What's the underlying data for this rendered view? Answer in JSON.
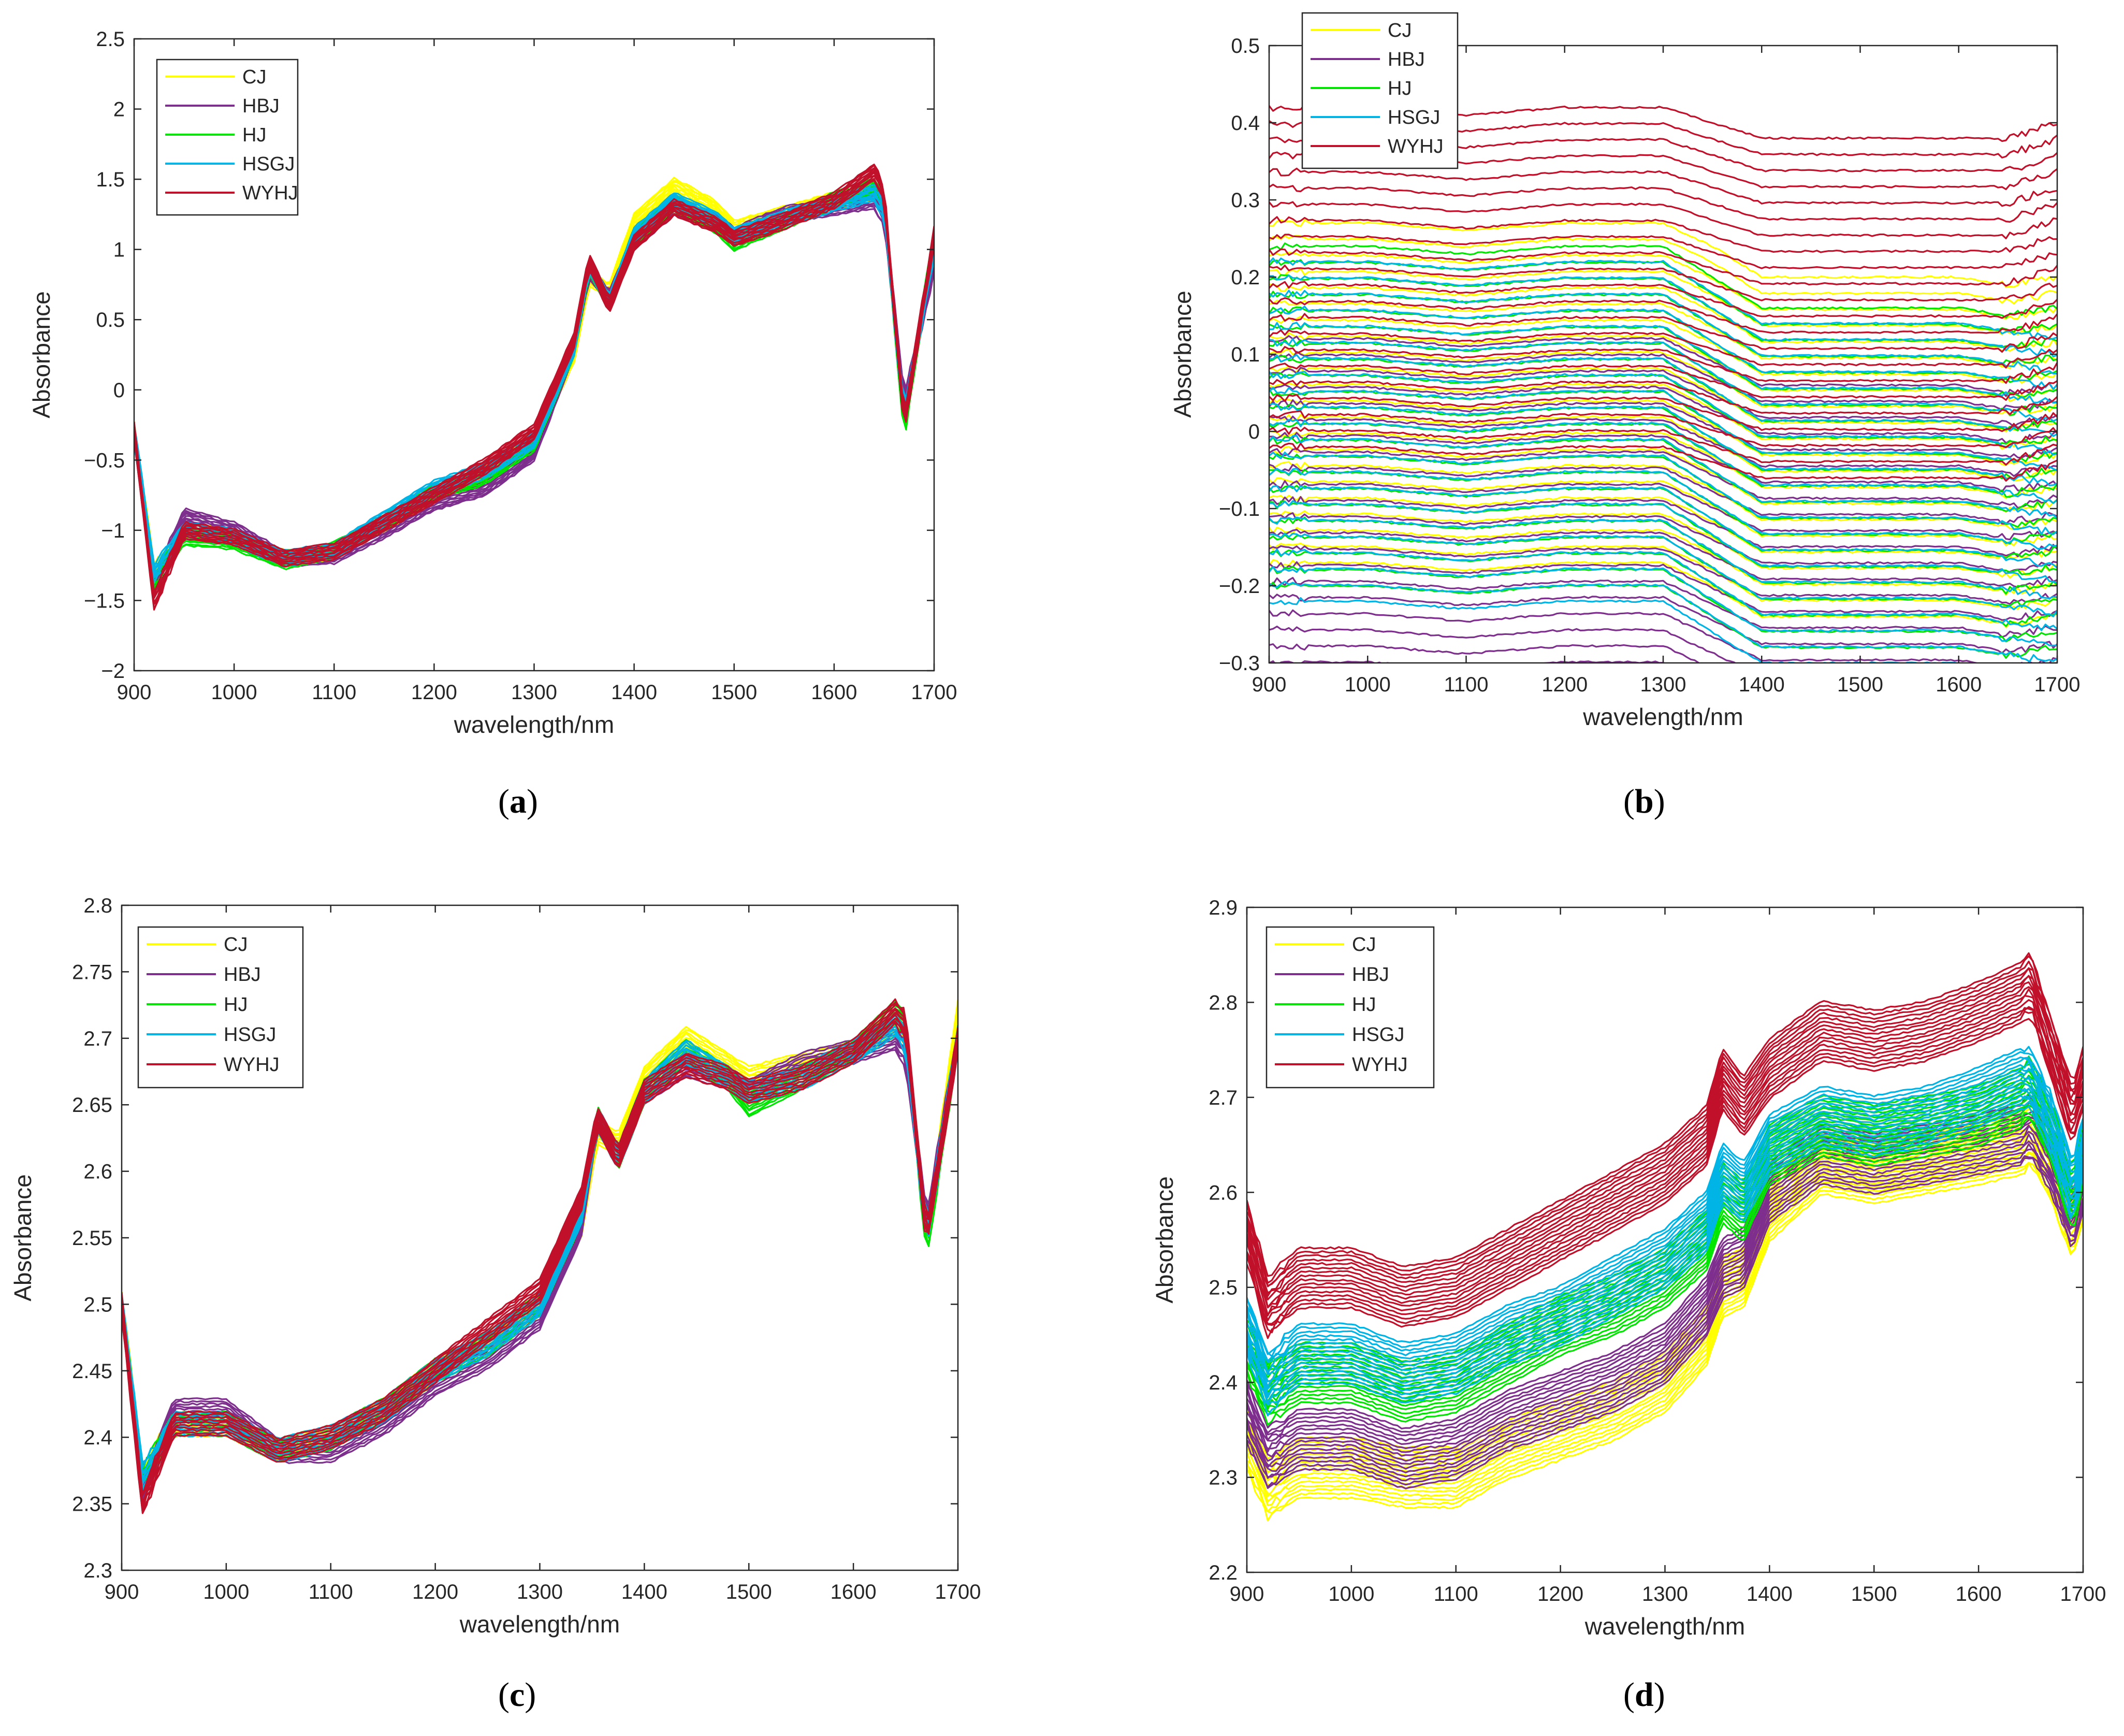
{
  "figure": {
    "captions": [
      {
        "open": "(",
        "letter": "a",
        "close": ")"
      },
      {
        "open": "(",
        "letter": "b",
        "close": ")"
      },
      {
        "open": "(",
        "letter": "c",
        "close": ")"
      },
      {
        "open": "(",
        "letter": "d",
        "close": ")"
      }
    ]
  },
  "colors": {
    "CJ": "#ffff00",
    "HBJ": "#7e2f8e",
    "HJ": "#00e600",
    "HSGJ": "#00b4e6",
    "WYHJ": "#c0102a"
  },
  "chart_data": [
    {
      "id": "a",
      "type": "line",
      "title": "",
      "xlabel": "wavelength/nm",
      "ylabel": "Absorbance",
      "xlim": [
        900,
        1700
      ],
      "ylim": [
        -2,
        2.5
      ],
      "xticks": [
        900,
        1000,
        1100,
        1200,
        1300,
        1400,
        1500,
        1600,
        1700
      ],
      "yticks": [
        -2,
        -1.5,
        -1,
        -0.5,
        0,
        0.5,
        1,
        1.5,
        2,
        2.5
      ],
      "ytick_labels": [
        "−2",
        "−1.5",
        "−1",
        "−0.5",
        "0",
        "0.5",
        "1",
        "1.5",
        "2",
        "2.5"
      ],
      "legend": [
        "CJ",
        "HBJ",
        "HJ",
        "HSGJ",
        "WYHJ"
      ],
      "legend_position": "top-left",
      "grid": false,
      "x": [
        900,
        920,
        950,
        1000,
        1050,
        1100,
        1150,
        1200,
        1250,
        1300,
        1340,
        1355,
        1375,
        1400,
        1440,
        1480,
        1500,
        1550,
        1600,
        1640,
        1650,
        1670,
        1700
      ],
      "series": [
        {
          "name": "CJ",
          "values": [
            -0.3,
            -1.3,
            -1.0,
            -1.05,
            -1.2,
            -1.15,
            -0.95,
            -0.75,
            -0.6,
            -0.35,
            0.25,
            0.8,
            0.7,
            1.2,
            1.45,
            1.3,
            1.15,
            1.25,
            1.35,
            1.4,
            1.3,
            -0.2,
            1.0
          ]
        },
        {
          "name": "HBJ",
          "values": [
            -0.3,
            -1.4,
            -0.9,
            -1.0,
            -1.2,
            -1.18,
            -1.0,
            -0.8,
            -0.7,
            -0.45,
            0.3,
            0.85,
            0.65,
            1.05,
            1.3,
            1.2,
            1.1,
            1.25,
            1.3,
            1.35,
            1.25,
            -0.1,
            0.9
          ]
        },
        {
          "name": "HJ",
          "values": [
            -0.3,
            -1.35,
            -1.05,
            -1.08,
            -1.22,
            -1.14,
            -0.95,
            -0.72,
            -0.62,
            -0.38,
            0.3,
            0.88,
            0.62,
            1.08,
            1.33,
            1.18,
            1.05,
            1.2,
            1.35,
            1.45,
            1.35,
            -0.3,
            1.1
          ]
        },
        {
          "name": "HSGJ",
          "values": [
            -0.3,
            -1.3,
            -1.0,
            -1.05,
            -1.2,
            -1.15,
            -0.92,
            -0.7,
            -0.58,
            -0.36,
            0.3,
            0.9,
            0.62,
            1.1,
            1.35,
            1.22,
            1.1,
            1.22,
            1.33,
            1.4,
            1.3,
            -0.2,
            1.0
          ]
        },
        {
          "name": "WYHJ",
          "values": [
            -0.3,
            -1.5,
            -1.0,
            -1.05,
            -1.2,
            -1.15,
            -0.95,
            -0.75,
            -0.55,
            -0.3,
            0.35,
            0.92,
            0.6,
            1.05,
            1.3,
            1.18,
            1.08,
            1.2,
            1.35,
            1.55,
            1.4,
            -0.25,
            1.1
          ]
        }
      ]
    },
    {
      "id": "b",
      "type": "line",
      "title": "",
      "xlabel": "wavelength/nm",
      "ylabel": "Absorbance",
      "xlim": [
        900,
        1700
      ],
      "ylim": [
        -0.3,
        0.5
      ],
      "xticks": [
        900,
        1000,
        1100,
        1200,
        1300,
        1400,
        1500,
        1600,
        1700
      ],
      "yticks": [
        -0.3,
        -0.2,
        -0.1,
        0,
        0.1,
        0.2,
        0.3,
        0.4,
        0.5
      ],
      "ytick_labels": [
        "−0.3",
        "−0.2",
        "−0.1",
        "0",
        "0.1",
        "0.2",
        "0.3",
        "0.4",
        "0.5"
      ],
      "legend": [
        "CJ",
        "HBJ",
        "HJ",
        "HSGJ",
        "WYHJ"
      ],
      "legend_position": "top-left",
      "grid": false,
      "x": [
        900,
        1000,
        1100,
        1200,
        1300,
        1350,
        1400,
        1500,
        1600,
        1650,
        1700
      ],
      "series": [
        {
          "name": "CJ",
          "values": [
            0.05,
            0.05,
            0.04,
            0.05,
            0.05,
            0.02,
            -0.02,
            -0.02,
            -0.02,
            -0.03,
            -0.02
          ]
        },
        {
          "name": "HBJ",
          "values": [
            -0.1,
            -0.1,
            -0.11,
            -0.1,
            -0.1,
            -0.13,
            -0.16,
            -0.16,
            -0.16,
            -0.17,
            -0.16
          ]
        },
        {
          "name": "HJ",
          "values": [
            0.02,
            0.02,
            0.01,
            0.02,
            0.02,
            -0.02,
            -0.06,
            -0.06,
            -0.06,
            -0.07,
            -0.06
          ]
        },
        {
          "name": "HSGJ",
          "values": [
            0.0,
            0.0,
            -0.01,
            0.0,
            0.0,
            -0.04,
            -0.08,
            -0.08,
            -0.08,
            -0.09,
            -0.1
          ]
        },
        {
          "name": "WYHJ",
          "values": [
            0.2,
            0.2,
            0.19,
            0.2,
            0.2,
            0.18,
            0.16,
            0.16,
            0.16,
            0.16,
            0.18
          ]
        }
      ]
    },
    {
      "id": "c",
      "type": "line",
      "title": "",
      "xlabel": "wavelength/nm",
      "ylabel": "Absorbance",
      "xlim": [
        900,
        1700
      ],
      "ylim": [
        2.3,
        2.8
      ],
      "xticks": [
        900,
        1000,
        1100,
        1200,
        1300,
        1400,
        1500,
        1600,
        1700
      ],
      "yticks": [
        2.3,
        2.35,
        2.4,
        2.45,
        2.5,
        2.55,
        2.6,
        2.65,
        2.7,
        2.75,
        2.8
      ],
      "ytick_labels": [
        "2.3",
        "2.35",
        "2.4",
        "2.45",
        "2.5",
        "2.55",
        "2.6",
        "2.65",
        "2.7",
        "2.75",
        "2.8"
      ],
      "legend": [
        "CJ",
        "HBJ",
        "HJ",
        "HSGJ",
        "WYHJ"
      ],
      "legend_position": "top-left",
      "grid": false,
      "x": [
        900,
        920,
        950,
        1000,
        1050,
        1100,
        1150,
        1200,
        1250,
        1300,
        1340,
        1355,
        1375,
        1400,
        1440,
        1480,
        1500,
        1550,
        1600,
        1640,
        1650,
        1670,
        1700
      ],
      "series": [
        {
          "name": "CJ",
          "values": [
            2.5,
            2.37,
            2.41,
            2.41,
            2.39,
            2.4,
            2.42,
            2.45,
            2.47,
            2.5,
            2.56,
            2.63,
            2.62,
            2.67,
            2.7,
            2.68,
            2.67,
            2.68,
            2.69,
            2.71,
            2.7,
            2.55,
            2.72
          ]
        },
        {
          "name": "HBJ",
          "values": [
            2.5,
            2.36,
            2.42,
            2.42,
            2.39,
            2.39,
            2.41,
            2.44,
            2.46,
            2.49,
            2.56,
            2.64,
            2.61,
            2.66,
            2.68,
            2.67,
            2.66,
            2.68,
            2.69,
            2.7,
            2.69,
            2.56,
            2.7
          ]
        },
        {
          "name": "HJ",
          "values": [
            2.5,
            2.37,
            2.41,
            2.41,
            2.39,
            2.4,
            2.42,
            2.45,
            2.47,
            2.5,
            2.57,
            2.64,
            2.61,
            2.66,
            2.69,
            2.67,
            2.65,
            2.67,
            2.69,
            2.72,
            2.71,
            2.54,
            2.7
          ]
        },
        {
          "name": "HSGJ",
          "values": [
            2.5,
            2.37,
            2.41,
            2.41,
            2.39,
            2.4,
            2.42,
            2.45,
            2.47,
            2.5,
            2.57,
            2.64,
            2.61,
            2.66,
            2.69,
            2.67,
            2.66,
            2.67,
            2.69,
            2.71,
            2.7,
            2.55,
            2.7
          ]
        },
        {
          "name": "WYHJ",
          "values": [
            2.5,
            2.35,
            2.41,
            2.41,
            2.39,
            2.4,
            2.42,
            2.45,
            2.48,
            2.51,
            2.58,
            2.64,
            2.61,
            2.66,
            2.68,
            2.67,
            2.66,
            2.67,
            2.69,
            2.72,
            2.71,
            2.55,
            2.7
          ]
        }
      ]
    },
    {
      "id": "d",
      "type": "line",
      "title": "",
      "xlabel": "wavelength/nm",
      "ylabel": "Absorbance",
      "xlim": [
        900,
        1700
      ],
      "ylim": [
        2.2,
        2.9
      ],
      "xticks": [
        900,
        1000,
        1100,
        1200,
        1300,
        1400,
        1500,
        1600,
        1700
      ],
      "yticks": [
        2.2,
        2.3,
        2.4,
        2.5,
        2.6,
        2.7,
        2.8,
        2.9
      ],
      "ytick_labels": [
        "2.2",
        "2.3",
        "2.4",
        "2.5",
        "2.6",
        "2.7",
        "2.8",
        "2.9"
      ],
      "legend": [
        "CJ",
        "HBJ",
        "HJ",
        "HSGJ",
        "WYHJ"
      ],
      "legend_position": "top-left",
      "grid": false,
      "x": [
        900,
        920,
        950,
        1000,
        1050,
        1100,
        1150,
        1200,
        1250,
        1300,
        1340,
        1355,
        1375,
        1400,
        1450,
        1500,
        1550,
        1600,
        1640,
        1650,
        1670,
        1690,
        1700
      ],
      "series": [
        {
          "name": "CJ",
          "values": [
            2.34,
            2.29,
            2.31,
            2.31,
            2.3,
            2.3,
            2.33,
            2.35,
            2.37,
            2.4,
            2.45,
            2.5,
            2.51,
            2.58,
            2.63,
            2.62,
            2.63,
            2.64,
            2.65,
            2.66,
            2.62,
            2.56,
            2.6
          ]
        },
        {
          "name": "HBJ",
          "values": [
            2.37,
            2.32,
            2.34,
            2.34,
            2.32,
            2.33,
            2.36,
            2.38,
            2.4,
            2.43,
            2.48,
            2.52,
            2.53,
            2.6,
            2.64,
            2.63,
            2.64,
            2.65,
            2.66,
            2.67,
            2.63,
            2.57,
            2.61
          ]
        },
        {
          "name": "HJ",
          "values": [
            2.44,
            2.39,
            2.41,
            2.41,
            2.39,
            2.4,
            2.43,
            2.46,
            2.48,
            2.51,
            2.55,
            2.6,
            2.58,
            2.64,
            2.67,
            2.66,
            2.67,
            2.68,
            2.7,
            2.71,
            2.66,
            2.59,
            2.64
          ]
        },
        {
          "name": "HSGJ",
          "values": [
            2.46,
            2.4,
            2.43,
            2.43,
            2.41,
            2.42,
            2.45,
            2.47,
            2.5,
            2.53,
            2.57,
            2.62,
            2.6,
            2.65,
            2.68,
            2.67,
            2.68,
            2.7,
            2.72,
            2.72,
            2.67,
            2.6,
            2.65
          ]
        },
        {
          "name": "WYHJ",
          "values": [
            2.56,
            2.48,
            2.51,
            2.51,
            2.49,
            2.5,
            2.53,
            2.56,
            2.59,
            2.62,
            2.66,
            2.72,
            2.69,
            2.73,
            2.77,
            2.76,
            2.77,
            2.79,
            2.81,
            2.82,
            2.75,
            2.68,
            2.72
          ]
        }
      ]
    }
  ]
}
